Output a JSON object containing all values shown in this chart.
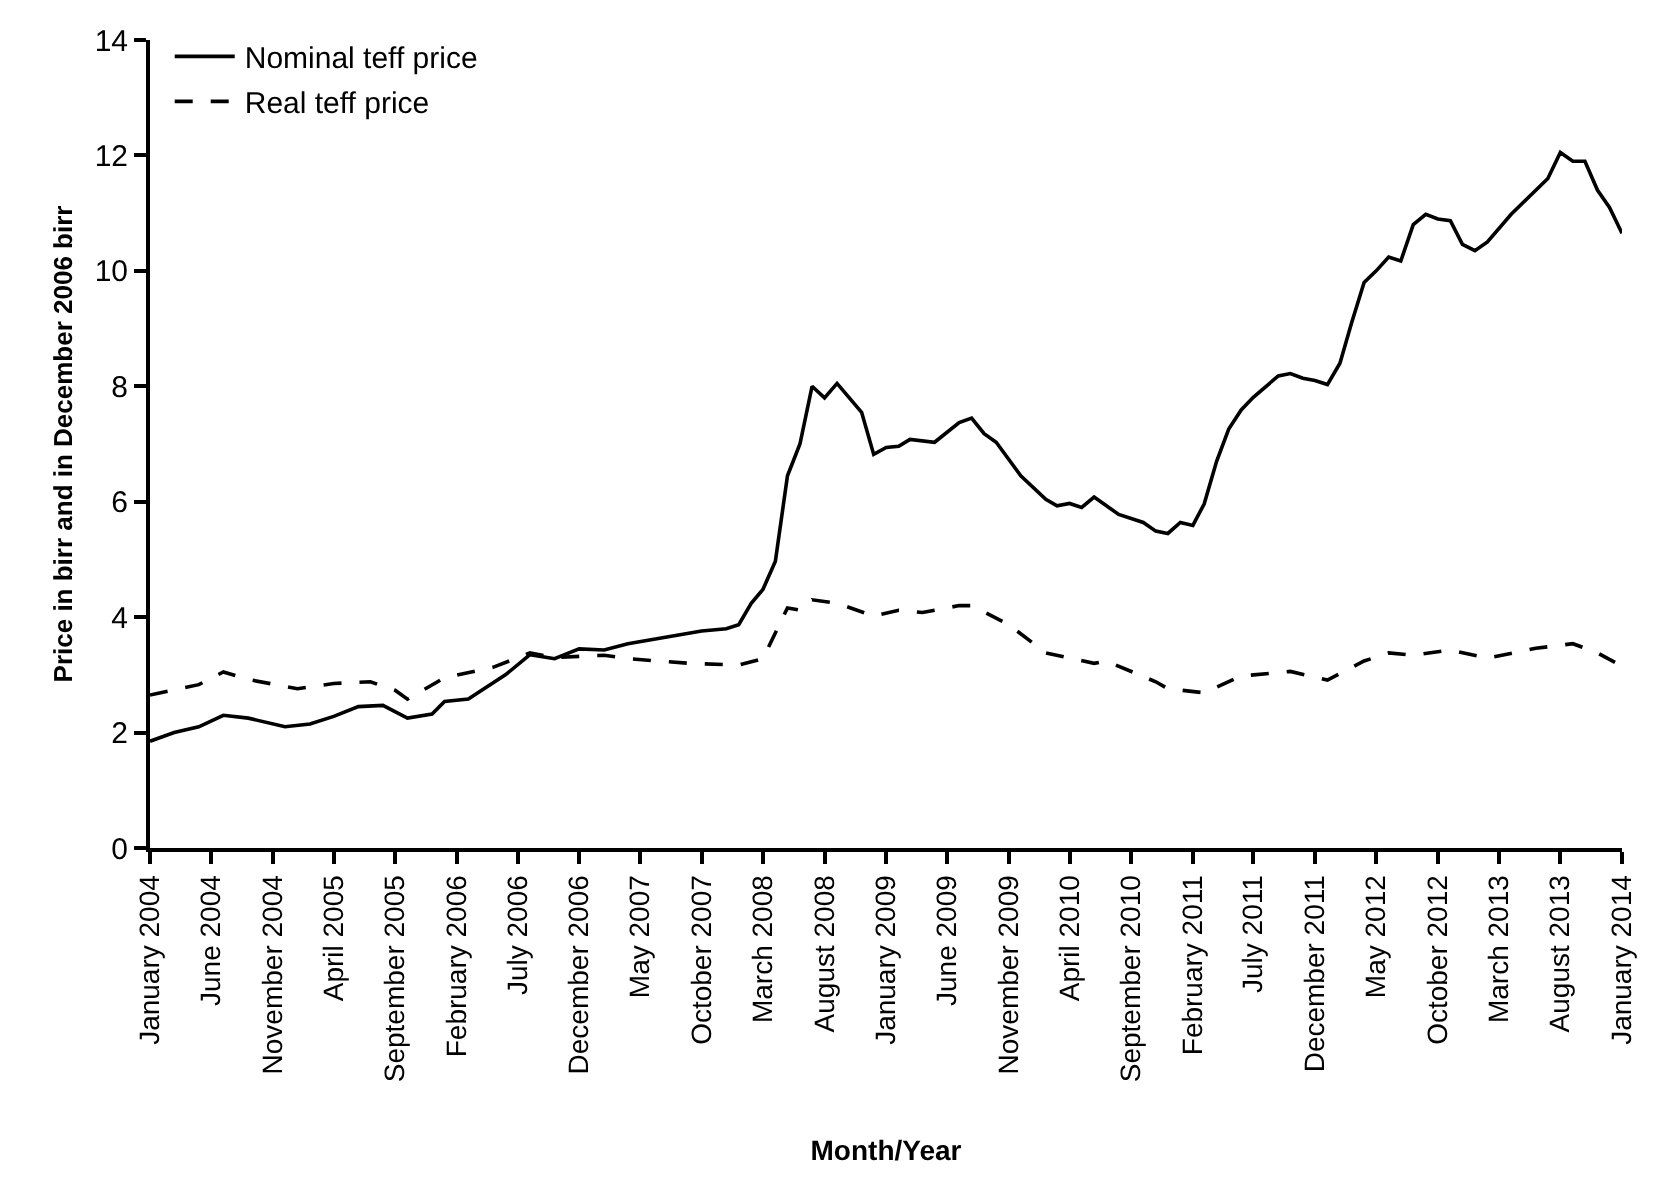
{
  "chart_data": {
    "type": "line",
    "xlabel": "Month/Year",
    "ylabel": "Price in birr and in December 2006 birr",
    "series": [
      {
        "name": "Nominal teff price",
        "color": "#000000",
        "line_style": "solid",
        "x": [
          "2004-01",
          "2004-03",
          "2004-05",
          "2004-07",
          "2004-09",
          "2004-12",
          "2005-02",
          "2005-04",
          "2005-06",
          "2005-08",
          "2005-10",
          "2005-12",
          "2006-01",
          "2006-03",
          "2006-06",
          "2006-08",
          "2006-10",
          "2006-12",
          "2007-02",
          "2007-04",
          "2007-10",
          "2007-12",
          "2008-01",
          "2008-02",
          "2008-03",
          "2008-04",
          "2008-05",
          "2008-06",
          "2008-07",
          "2008-08",
          "2008-09",
          "2008-11",
          "2008-12",
          "2009-01",
          "2009-02",
          "2009-03",
          "2009-05",
          "2009-07",
          "2009-08",
          "2009-09",
          "2009-10",
          "2009-12",
          "2010-02",
          "2010-03",
          "2010-04",
          "2010-05",
          "2010-06",
          "2010-08",
          "2010-10",
          "2010-11",
          "2010-12",
          "2011-01",
          "2011-02",
          "2011-03",
          "2011-04",
          "2011-05",
          "2011-06",
          "2011-07",
          "2011-09",
          "2011-10",
          "2011-11",
          "2011-12",
          "2012-01",
          "2012-02",
          "2012-03",
          "2012-04",
          "2012-05",
          "2012-06",
          "2012-07",
          "2012-08",
          "2012-09",
          "2012-10",
          "2012-11",
          "2012-12",
          "2013-01",
          "2013-02",
          "2013-04",
          "2013-07",
          "2013-08",
          "2013-09",
          "2013-10",
          "2013-11",
          "2013-12",
          "2014-01"
        ],
        "values": [
          1.85,
          2.0,
          2.1,
          2.3,
          2.25,
          2.1,
          2.15,
          2.28,
          2.45,
          2.47,
          2.25,
          2.32,
          2.54,
          2.58,
          3.0,
          3.35,
          3.28,
          3.45,
          3.43,
          3.54,
          3.76,
          3.8,
          3.87,
          4.24,
          4.48,
          4.97,
          6.45,
          7.0,
          8.0,
          7.8,
          8.05,
          7.55,
          6.82,
          6.94,
          6.96,
          7.08,
          7.03,
          7.37,
          7.45,
          7.18,
          7.03,
          6.45,
          6.04,
          5.93,
          5.97,
          5.9,
          6.08,
          5.78,
          5.64,
          5.49,
          5.45,
          5.64,
          5.59,
          5.96,
          6.7,
          7.26,
          7.59,
          7.81,
          8.18,
          8.22,
          8.14,
          8.1,
          8.03,
          8.4,
          9.1,
          9.8,
          10.0,
          10.24,
          10.17,
          10.8,
          10.98,
          10.9,
          10.87,
          10.46,
          10.35,
          10.5,
          10.98,
          11.6,
          12.05,
          11.9,
          11.9,
          11.4,
          11.1,
          10.65
        ]
      },
      {
        "name": "Real teff price",
        "color": "#000000",
        "line_style": "dashed",
        "x": [
          "2004-01",
          "2004-05",
          "2004-07",
          "2004-09",
          "2005-01",
          "2005-04",
          "2005-07",
          "2005-09",
          "2005-10",
          "2006-01",
          "2006-05",
          "2006-08",
          "2006-10",
          "2007-02",
          "2007-04",
          "2007-09",
          "2008-01",
          "2008-03",
          "2008-05",
          "2008-06",
          "2008-07",
          "2008-09",
          "2008-12",
          "2009-02",
          "2009-04",
          "2009-07",
          "2009-08",
          "2009-11",
          "2010-02",
          "2010-06",
          "2010-07",
          "2010-11",
          "2010-12",
          "2011-03",
          "2011-06",
          "2011-10",
          "2012-01",
          "2012-04",
          "2012-06",
          "2012-08",
          "2012-11",
          "2013-02",
          "2013-06",
          "2013-09",
          "2013-11",
          "2014-01"
        ],
        "values": [
          2.65,
          2.83,
          3.05,
          2.92,
          2.76,
          2.85,
          2.88,
          2.73,
          2.58,
          2.95,
          3.13,
          3.38,
          3.3,
          3.34,
          3.28,
          3.2,
          3.17,
          3.28,
          4.16,
          4.12,
          4.3,
          4.24,
          4.02,
          4.12,
          4.08,
          4.2,
          4.2,
          3.87,
          3.38,
          3.2,
          3.24,
          2.88,
          2.76,
          2.69,
          2.98,
          3.06,
          2.91,
          3.24,
          3.38,
          3.34,
          3.43,
          3.29,
          3.46,
          3.54,
          3.38,
          3.15
        ]
      }
    ],
    "xlim": [
      "2004-01",
      "2014-01"
    ],
    "xticks": [
      {
        "value": "2004-01",
        "label": "January 2004"
      },
      {
        "value": "2004-06",
        "label": "June 2004"
      },
      {
        "value": "2004-11",
        "label": "November 2004"
      },
      {
        "value": "2005-04",
        "label": "April 2005"
      },
      {
        "value": "2005-09",
        "label": "September 2005"
      },
      {
        "value": "2006-02",
        "label": "February 2006"
      },
      {
        "value": "2006-07",
        "label": "July 2006"
      },
      {
        "value": "2006-12",
        "label": "December 2006"
      },
      {
        "value": "2007-05",
        "label": "May 2007"
      },
      {
        "value": "2007-10",
        "label": "October 2007"
      },
      {
        "value": "2008-03",
        "label": "March 2008"
      },
      {
        "value": "2008-08",
        "label": "August 2008"
      },
      {
        "value": "2009-01",
        "label": "January 2009"
      },
      {
        "value": "2009-06",
        "label": "June 2009"
      },
      {
        "value": "2009-11",
        "label": "November 2009"
      },
      {
        "value": "2010-04",
        "label": "April 2010"
      },
      {
        "value": "2010-09",
        "label": "September 2010"
      },
      {
        "value": "2011-02",
        "label": "February 2011"
      },
      {
        "value": "2011-07",
        "label": "July 2011"
      },
      {
        "value": "2011-12",
        "label": "December 2011"
      },
      {
        "value": "2012-05",
        "label": "May 2012"
      },
      {
        "value": "2012-10",
        "label": "October 2012"
      },
      {
        "value": "2013-03",
        "label": "March 2013"
      },
      {
        "value": "2013-08",
        "label": "August 2013"
      },
      {
        "value": "2014-01",
        "label": "January 2014"
      }
    ],
    "ylim": [
      0,
      14
    ],
    "yticks": [
      0,
      2,
      4,
      6,
      8,
      10,
      12,
      14
    ],
    "grid": false,
    "legend": "top left",
    "marker": "none"
  }
}
